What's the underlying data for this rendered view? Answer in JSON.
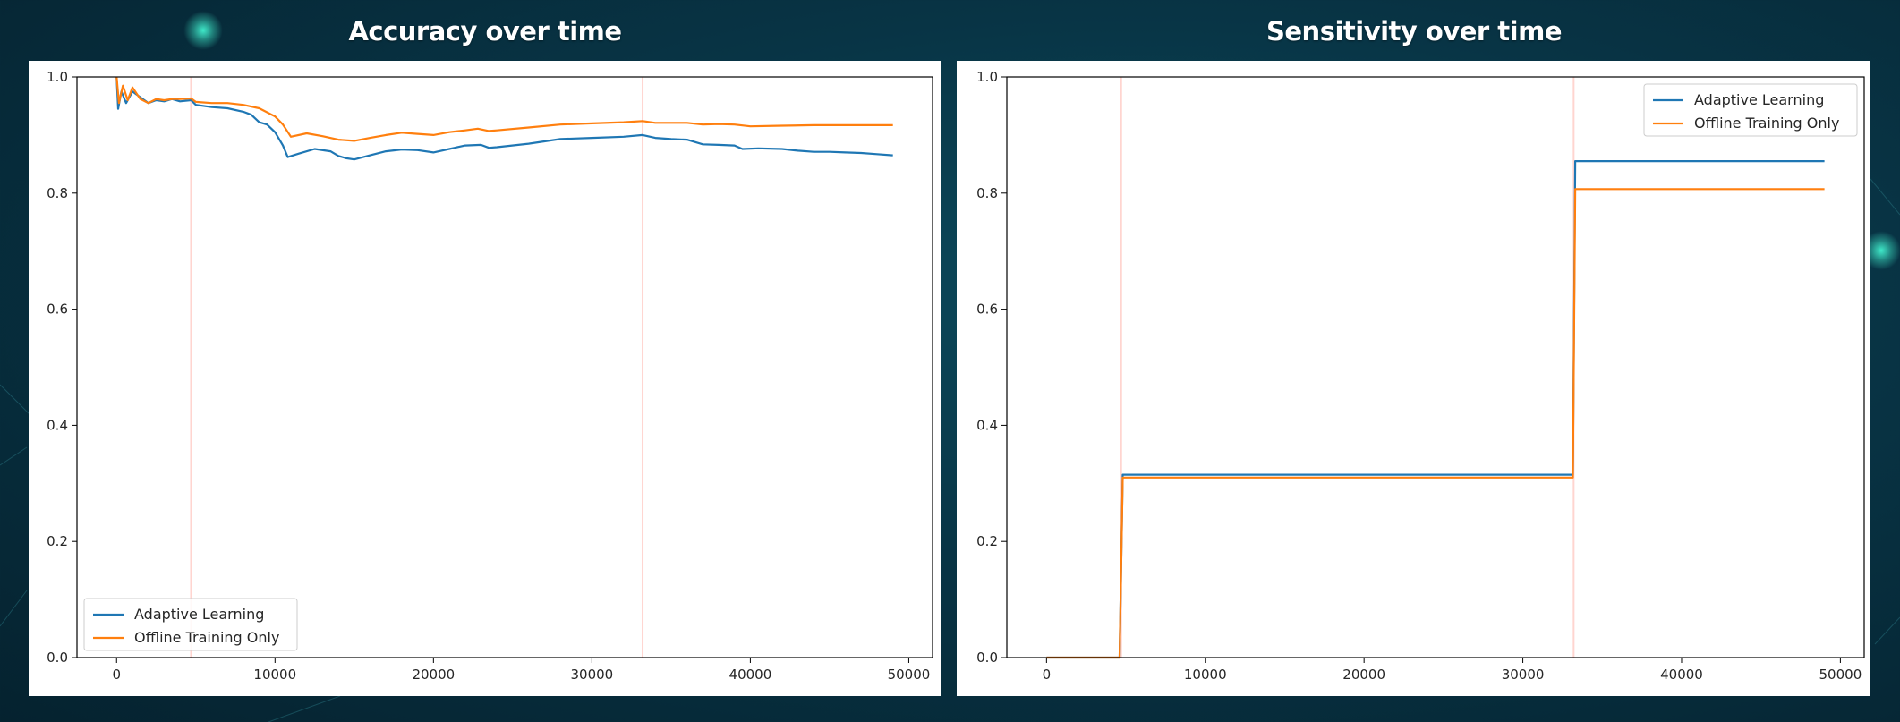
{
  "chart_data": [
    {
      "type": "line",
      "title": "Accuracy over time",
      "xlabel": "",
      "ylabel": "",
      "xlim": [
        -2500,
        51500
      ],
      "ylim": [
        0.0,
        1.0
      ],
      "xticks": [
        0,
        10000,
        20000,
        30000,
        40000,
        50000
      ],
      "yticks": [
        0.0,
        0.2,
        0.4,
        0.6,
        0.8,
        1.0
      ],
      "grid": false,
      "legend": "lower-left",
      "vlines": [
        {
          "x": 4700,
          "color": "#ffd5d0"
        },
        {
          "x": 33200,
          "color": "#ffd5d0"
        }
      ],
      "series": [
        {
          "name": "Adaptive Learning",
          "color": "#1f77b4",
          "points": [
            [
              0,
              1.0
            ],
            [
              100,
              0.945
            ],
            [
              300,
              0.975
            ],
            [
              600,
              0.955
            ],
            [
              1000,
              0.975
            ],
            [
              1500,
              0.965
            ],
            [
              2000,
              0.955
            ],
            [
              2500,
              0.96
            ],
            [
              3000,
              0.958
            ],
            [
              3500,
              0.962
            ],
            [
              4000,
              0.958
            ],
            [
              4700,
              0.96
            ],
            [
              5000,
              0.952
            ],
            [
              6000,
              0.948
            ],
            [
              7000,
              0.946
            ],
            [
              8000,
              0.94
            ],
            [
              8500,
              0.935
            ],
            [
              9000,
              0.922
            ],
            [
              9500,
              0.918
            ],
            [
              10000,
              0.905
            ],
            [
              10500,
              0.882
            ],
            [
              10800,
              0.862
            ],
            [
              11500,
              0.868
            ],
            [
              12500,
              0.876
            ],
            [
              13500,
              0.872
            ],
            [
              14000,
              0.864
            ],
            [
              14500,
              0.86
            ],
            [
              15000,
              0.858
            ],
            [
              16000,
              0.865
            ],
            [
              17000,
              0.872
            ],
            [
              18000,
              0.875
            ],
            [
              19000,
              0.874
            ],
            [
              20000,
              0.87
            ],
            [
              21000,
              0.876
            ],
            [
              22000,
              0.882
            ],
            [
              23000,
              0.883
            ],
            [
              23500,
              0.878
            ],
            [
              24000,
              0.879
            ],
            [
              26000,
              0.885
            ],
            [
              28000,
              0.893
            ],
            [
              30000,
              0.895
            ],
            [
              32000,
              0.897
            ],
            [
              33200,
              0.9
            ],
            [
              34000,
              0.895
            ],
            [
              35000,
              0.893
            ],
            [
              36000,
              0.892
            ],
            [
              37000,
              0.884
            ],
            [
              38000,
              0.883
            ],
            [
              39000,
              0.882
            ],
            [
              39500,
              0.876
            ],
            [
              40500,
              0.877
            ],
            [
              42000,
              0.876
            ],
            [
              43000,
              0.873
            ],
            [
              44000,
              0.871
            ],
            [
              45000,
              0.871
            ],
            [
              46000,
              0.87
            ],
            [
              47000,
              0.869
            ],
            [
              48000,
              0.867
            ],
            [
              49000,
              0.865
            ]
          ]
        },
        {
          "name": "Offline Training Only",
          "color": "#ff7f0e",
          "points": [
            [
              0,
              1.0
            ],
            [
              150,
              0.955
            ],
            [
              400,
              0.985
            ],
            [
              700,
              0.96
            ],
            [
              1000,
              0.982
            ],
            [
              1500,
              0.962
            ],
            [
              2000,
              0.955
            ],
            [
              2500,
              0.962
            ],
            [
              3000,
              0.96
            ],
            [
              3500,
              0.962
            ],
            [
              4000,
              0.962
            ],
            [
              4700,
              0.963
            ],
            [
              5000,
              0.957
            ],
            [
              6000,
              0.955
            ],
            [
              7000,
              0.955
            ],
            [
              8000,
              0.952
            ],
            [
              9000,
              0.946
            ],
            [
              10000,
              0.932
            ],
            [
              10500,
              0.918
            ],
            [
              11000,
              0.897
            ],
            [
              12000,
              0.903
            ],
            [
              13000,
              0.898
            ],
            [
              14000,
              0.892
            ],
            [
              15000,
              0.89
            ],
            [
              16000,
              0.895
            ],
            [
              17000,
              0.9
            ],
            [
              18000,
              0.904
            ],
            [
              19000,
              0.902
            ],
            [
              20000,
              0.9
            ],
            [
              21000,
              0.905
            ],
            [
              22000,
              0.908
            ],
            [
              22800,
              0.911
            ],
            [
              23500,
              0.907
            ],
            [
              24000,
              0.908
            ],
            [
              26000,
              0.913
            ],
            [
              28000,
              0.918
            ],
            [
              30000,
              0.92
            ],
            [
              32000,
              0.922
            ],
            [
              33200,
              0.924
            ],
            [
              34000,
              0.921
            ],
            [
              35000,
              0.921
            ],
            [
              36000,
              0.921
            ],
            [
              37000,
              0.918
            ],
            [
              38000,
              0.919
            ],
            [
              39000,
              0.918
            ],
            [
              40000,
              0.915
            ],
            [
              42000,
              0.916
            ],
            [
              44000,
              0.917
            ],
            [
              46000,
              0.917
            ],
            [
              48000,
              0.917
            ],
            [
              49000,
              0.917
            ]
          ]
        }
      ]
    },
    {
      "type": "line",
      "title": "Sensitivity over time",
      "xlabel": "",
      "ylabel": "",
      "xlim": [
        -2500,
        51500
      ],
      "ylim": [
        0.0,
        1.0
      ],
      "xticks": [
        0,
        10000,
        20000,
        30000,
        40000,
        50000
      ],
      "yticks": [
        0.0,
        0.2,
        0.4,
        0.6,
        0.8,
        1.0
      ],
      "grid": false,
      "legend": "top-right",
      "vlines": [
        {
          "x": 4700,
          "color": "#ffd5d0"
        },
        {
          "x": 33200,
          "color": "#ffd5d0"
        }
      ],
      "series": [
        {
          "name": "Adaptive Learning",
          "color": "#1f77b4",
          "points": [
            [
              0,
              0.0
            ],
            [
              4600,
              0.0
            ],
            [
              4800,
              0.315
            ],
            [
              33150,
              0.315
            ],
            [
              33300,
              0.855
            ],
            [
              49000,
              0.855
            ]
          ]
        },
        {
          "name": "Offline Training Only",
          "color": "#ff7f0e",
          "points": [
            [
              0,
              0.0
            ],
            [
              4600,
              0.0
            ],
            [
              4800,
              0.31
            ],
            [
              33150,
              0.31
            ],
            [
              33300,
              0.807
            ],
            [
              49000,
              0.807
            ]
          ]
        }
      ]
    }
  ]
}
